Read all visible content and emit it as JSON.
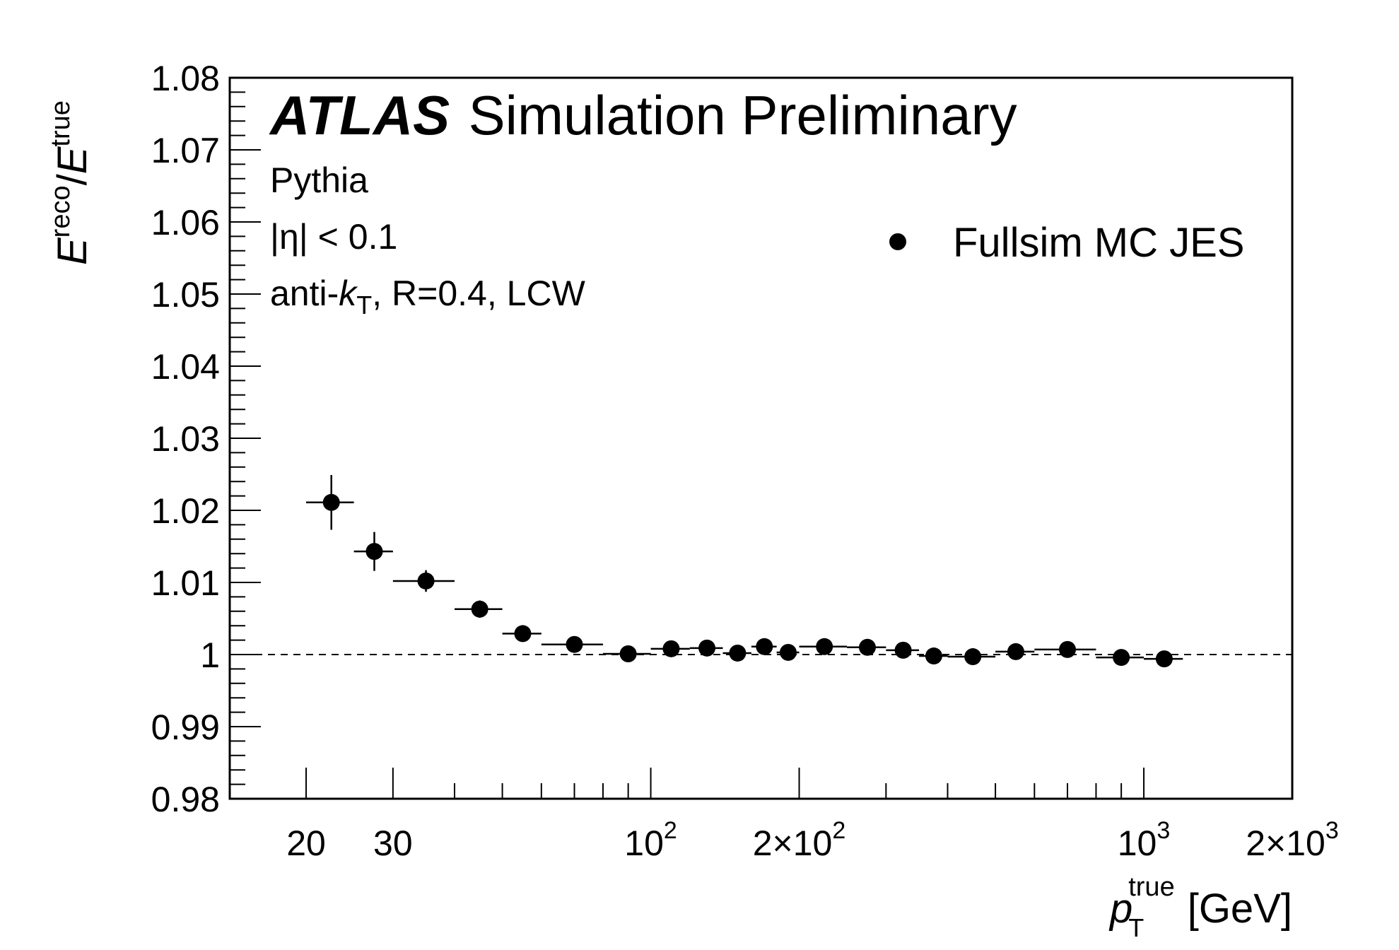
{
  "chart_data": {
    "type": "scatter",
    "experiment": "ATLAS",
    "subtitle": "Simulation Preliminary",
    "annotations": [
      "Pythia",
      "|η| < 0.1",
      "anti-kT, R=0.4, LCW"
    ],
    "annotation_parts": {
      "generator": "Pythia",
      "eta_cut": "|η| < 0.1",
      "algo_prefix": "anti-",
      "algo_k": "k",
      "algo_sub": "T",
      "algo_rest": ", R=0.4, LCW"
    },
    "xlabel": "p_T^true [GeV]",
    "xlabel_parts": {
      "main": "p",
      "sub": "T",
      "sup": "true",
      "unit": "[GeV]"
    },
    "ylabel": "E^reco/E^true",
    "ylabel_parts": {
      "e1": "E",
      "sup1": "reco",
      "slash": "/",
      "e2": "E",
      "sup2": "true"
    },
    "x_scale": "log",
    "xlim": [
      14,
      2000
    ],
    "ylim": [
      0.98,
      1.08
    ],
    "x_ticks": [
      {
        "value": 20,
        "base": "20",
        "exp": ""
      },
      {
        "value": 30,
        "base": "30",
        "exp": ""
      },
      {
        "value": 100,
        "base": "10",
        "exp": "2"
      },
      {
        "value": 200,
        "base": "2×10",
        "exp": "2"
      },
      {
        "value": 1000,
        "base": "10",
        "exp": "3"
      },
      {
        "value": 2000,
        "base": "2×10",
        "exp": "3"
      }
    ],
    "y_ticks": [
      "0.98",
      "0.99",
      "1",
      "1.01",
      "1.02",
      "1.03",
      "1.04",
      "1.05",
      "1.06",
      "1.07",
      "1.08"
    ],
    "reference_line": 1.0,
    "grid": false,
    "legend": {
      "position": "top-right",
      "entries": [
        "Fullsim MC JES"
      ]
    },
    "series": [
      {
        "name": "Fullsim MC JES",
        "marker": "filled-circle",
        "color": "#000000",
        "points": [
          {
            "x": 22.5,
            "y": 1.0211,
            "xlo": 20,
            "xhi": 25,
            "yerr": 0.0038
          },
          {
            "x": 27.5,
            "y": 1.0143,
            "xlo": 25,
            "xhi": 30,
            "yerr": 0.0027
          },
          {
            "x": 35,
            "y": 1.0102,
            "xlo": 30,
            "xhi": 40,
            "yerr": 0.0015
          },
          {
            "x": 45,
            "y": 1.0063,
            "xlo": 40,
            "xhi": 50,
            "yerr": 0.0012
          },
          {
            "x": 55,
            "y": 1.0029,
            "xlo": 50,
            "xhi": 60,
            "yerr": 0.0007
          },
          {
            "x": 70,
            "y": 1.0014,
            "xlo": 60,
            "xhi": 80,
            "yerr": 0.0005
          },
          {
            "x": 90,
            "y": 1.0001,
            "xlo": 80,
            "xhi": 100,
            "yerr": 0.0004
          },
          {
            "x": 110,
            "y": 1.0008,
            "xlo": 100,
            "xhi": 120,
            "yerr": 0.0004
          },
          {
            "x": 130,
            "y": 1.0009,
            "xlo": 120,
            "xhi": 140,
            "yerr": 0.0004
          },
          {
            "x": 150,
            "y": 1.0002,
            "xlo": 140,
            "xhi": 160,
            "yerr": 0.0004
          },
          {
            "x": 170,
            "y": 1.0011,
            "xlo": 160,
            "xhi": 180,
            "yerr": 0.0004
          },
          {
            "x": 190,
            "y": 1.0003,
            "xlo": 180,
            "xhi": 200,
            "yerr": 0.0004
          },
          {
            "x": 225,
            "y": 1.0011,
            "xlo": 200,
            "xhi": 250,
            "yerr": 0.0004
          },
          {
            "x": 275,
            "y": 1.001,
            "xlo": 250,
            "xhi": 300,
            "yerr": 0.0004
          },
          {
            "x": 325,
            "y": 1.0006,
            "xlo": 300,
            "xhi": 350,
            "yerr": 0.0004
          },
          {
            "x": 375,
            "y": 0.9998,
            "xlo": 350,
            "xhi": 400,
            "yerr": 0.0004
          },
          {
            "x": 450,
            "y": 0.9997,
            "xlo": 400,
            "xhi": 500,
            "yerr": 0.0004
          },
          {
            "x": 550,
            "y": 1.0004,
            "xlo": 500,
            "xhi": 600,
            "yerr": 0.0004
          },
          {
            "x": 700,
            "y": 1.0007,
            "xlo": 600,
            "xhi": 800,
            "yerr": 0.0004
          },
          {
            "x": 900,
            "y": 0.9996,
            "xlo": 800,
            "xhi": 1000,
            "yerr": 0.0004
          },
          {
            "x": 1100,
            "y": 0.9994,
            "xlo": 1000,
            "xhi": 1200,
            "yerr": 0.0004
          }
        ]
      }
    ]
  }
}
